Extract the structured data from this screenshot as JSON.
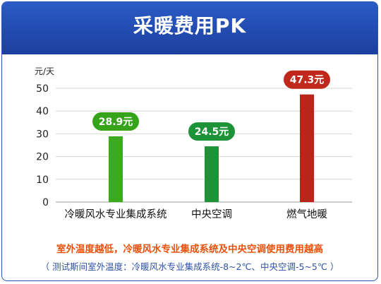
{
  "header": {
    "title": "采暖费用PK"
  },
  "chart_data": {
    "type": "bar",
    "unit_label": "元/天",
    "categories": [
      "冷暖风水专业集成系统",
      "中央空调",
      "燃气地暖"
    ],
    "values": [
      28.9,
      24.5,
      47.3
    ],
    "value_labels": [
      "28.9元",
      "24.5元",
      "47.3元"
    ],
    "yticks": [
      "0",
      "10",
      "20",
      "30",
      "40",
      "50"
    ],
    "ylim": [
      0,
      50
    ],
    "grid": true,
    "colors": {
      "bars": [
        "#3aaa1e",
        "#1d9338",
        "#b8261a"
      ],
      "labels": [
        "#35a41b",
        "#1d9338",
        "#c1281c"
      ]
    }
  },
  "notes": {
    "conclusion": "室外温度越低，冷暖风水专业集成系统及中央空调使用费用越高",
    "test_condition": "（ 测试斯间室外温度：冷暖风水专业集成系统-8~2℃、中央空调-5~5℃ ）"
  }
}
